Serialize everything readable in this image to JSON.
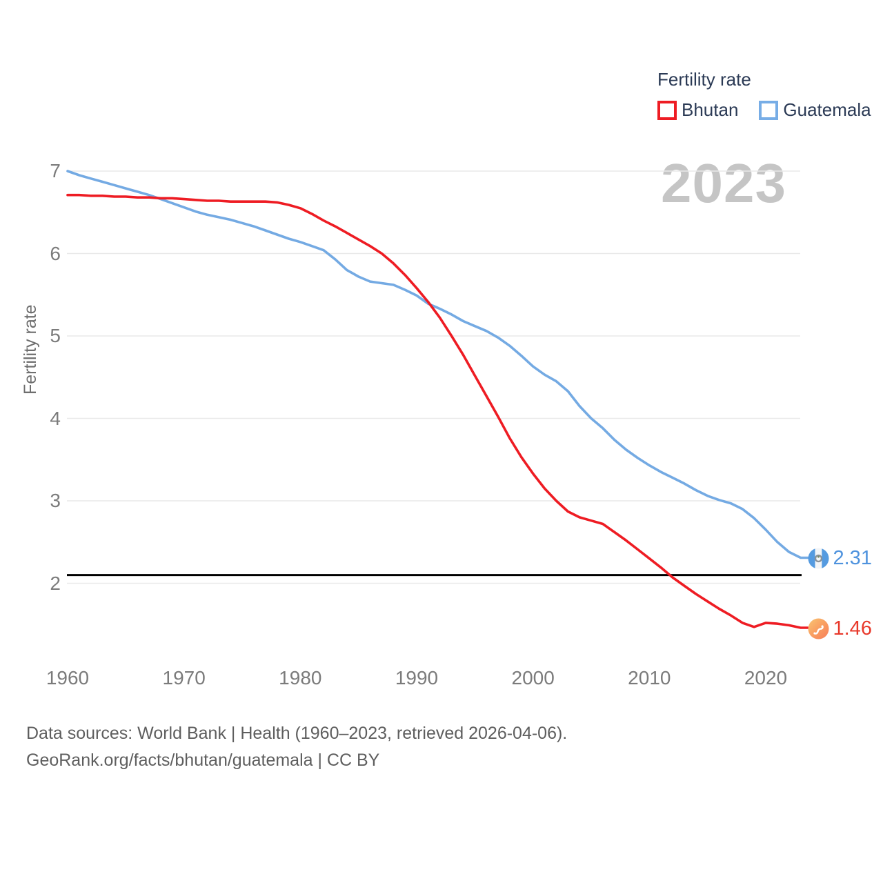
{
  "legend": {
    "title": "Fertility rate",
    "items": [
      {
        "label": "Bhutan",
        "color": "#ee1c23"
      },
      {
        "label": "Guatemala",
        "color": "#77ade6"
      }
    ]
  },
  "watermark": {
    "text": "2023"
  },
  "end_labels": {
    "guatemala": {
      "value": "2.31",
      "color": "#4f93de"
    },
    "bhutan": {
      "value": "1.46",
      "color": "#e8392b"
    }
  },
  "source": {
    "line1": "Data sources: World Bank | Health (1960–2023, retrieved 2026-04-06).",
    "line2": "GeoRank.org/facts/bhutan/guatemala | CC BY"
  },
  "chart_data": {
    "type": "line",
    "title": "Fertility rate",
    "xlabel": "",
    "ylabel": "Fertility rate",
    "ylim": [
      1.2,
      7.2
    ],
    "xlim": [
      1960,
      2023
    ],
    "grid": "horizontal",
    "legend_position": "top-right",
    "yticks": [
      2,
      3,
      4,
      5,
      6,
      7
    ],
    "xticks": [
      1960,
      1970,
      1980,
      1990,
      2000,
      2010,
      2020
    ],
    "reference_line": {
      "value": 2.1,
      "color": "#000000"
    },
    "x": [
      1960,
      1961,
      1962,
      1963,
      1964,
      1965,
      1966,
      1967,
      1968,
      1969,
      1970,
      1971,
      1972,
      1973,
      1974,
      1975,
      1976,
      1977,
      1978,
      1979,
      1980,
      1981,
      1982,
      1983,
      1984,
      1985,
      1986,
      1987,
      1988,
      1989,
      1990,
      1991,
      1992,
      1993,
      1994,
      1995,
      1996,
      1997,
      1998,
      1999,
      2000,
      2001,
      2002,
      2003,
      2004,
      2005,
      2006,
      2007,
      2008,
      2009,
      2010,
      2011,
      2012,
      2013,
      2014,
      2015,
      2016,
      2017,
      2018,
      2019,
      2020,
      2021,
      2022,
      2023
    ],
    "series": [
      {
        "name": "Guatemala",
        "color": "#74aae3",
        "end_value": 2.31,
        "values": [
          7.0,
          6.95,
          6.91,
          6.87,
          6.83,
          6.79,
          6.75,
          6.71,
          6.66,
          6.61,
          6.56,
          6.51,
          6.47,
          6.44,
          6.41,
          6.37,
          6.33,
          6.28,
          6.23,
          6.18,
          6.14,
          6.09,
          6.04,
          5.93,
          5.8,
          5.72,
          5.66,
          5.64,
          5.62,
          5.56,
          5.49,
          5.39,
          5.33,
          5.26,
          5.18,
          5.12,
          5.06,
          4.98,
          4.88,
          4.76,
          4.63,
          4.53,
          4.45,
          4.33,
          4.15,
          4.0,
          3.88,
          3.74,
          3.62,
          3.52,
          3.43,
          3.35,
          3.28,
          3.21,
          3.13,
          3.06,
          3.01,
          2.97,
          2.9,
          2.79,
          2.65,
          2.5,
          2.38,
          2.31
        ]
      },
      {
        "name": "Bhutan",
        "color": "#ee1c23",
        "end_value": 1.46,
        "values": [
          6.71,
          6.71,
          6.7,
          6.7,
          6.69,
          6.69,
          6.68,
          6.68,
          6.67,
          6.67,
          6.66,
          6.65,
          6.64,
          6.64,
          6.63,
          6.63,
          6.63,
          6.63,
          6.62,
          6.59,
          6.55,
          6.48,
          6.4,
          6.33,
          6.25,
          6.17,
          6.09,
          6.0,
          5.88,
          5.74,
          5.58,
          5.41,
          5.22,
          5.0,
          4.77,
          4.52,
          4.27,
          4.02,
          3.76,
          3.53,
          3.33,
          3.15,
          3.0,
          2.87,
          2.8,
          2.76,
          2.72,
          2.62,
          2.52,
          2.41,
          2.3,
          2.19,
          2.07,
          1.97,
          1.87,
          1.78,
          1.69,
          1.61,
          1.52,
          1.47,
          1.52,
          1.51,
          1.49,
          1.46
        ]
      }
    ]
  }
}
